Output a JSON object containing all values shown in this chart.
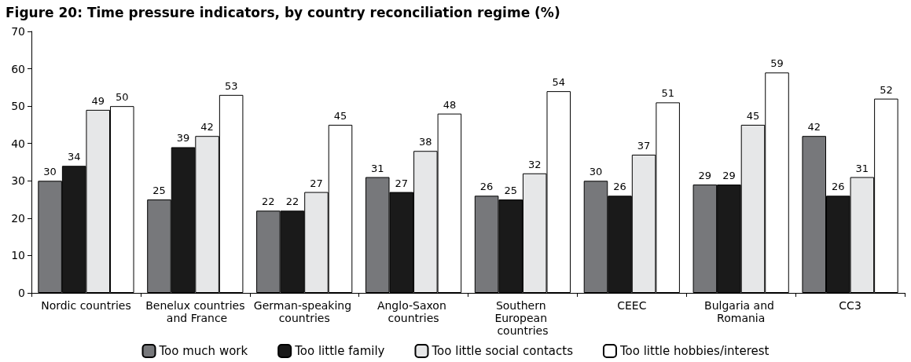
{
  "chart_data": {
    "type": "bar",
    "title": "Figure 20: Time pressure indicators, by country reconciliation regime (%)",
    "categories": [
      "Nordic countries",
      "Benelux countries and France",
      "German-speaking countries",
      "Anglo-Saxon countries",
      "Southern European countries",
      "CEEC",
      "Bulgaria and Romania",
      "CC3"
    ],
    "series": [
      {
        "name": "Too much work",
        "color": "#77787b",
        "values": [
          30,
          25,
          22,
          31,
          26,
          30,
          29,
          42
        ]
      },
      {
        "name": "Too little family",
        "color": "#1a1a1a",
        "values": [
          34,
          39,
          22,
          27,
          25,
          26,
          29,
          26
        ]
      },
      {
        "name": "Too little social contacts",
        "color": "#e6e7e8",
        "values": [
          49,
          42,
          27,
          38,
          32,
          37,
          45,
          31
        ]
      },
      {
        "name": "Too little hobbies/interest",
        "color": "#ffffff",
        "values": [
          50,
          53,
          45,
          48,
          54,
          51,
          59,
          52
        ]
      }
    ],
    "ylim": [
      0,
      70
    ],
    "yticks": [
      0,
      10,
      20,
      30,
      40,
      50,
      60,
      70
    ],
    "grid": false,
    "legend": "bottom",
    "data_labels": true
  }
}
